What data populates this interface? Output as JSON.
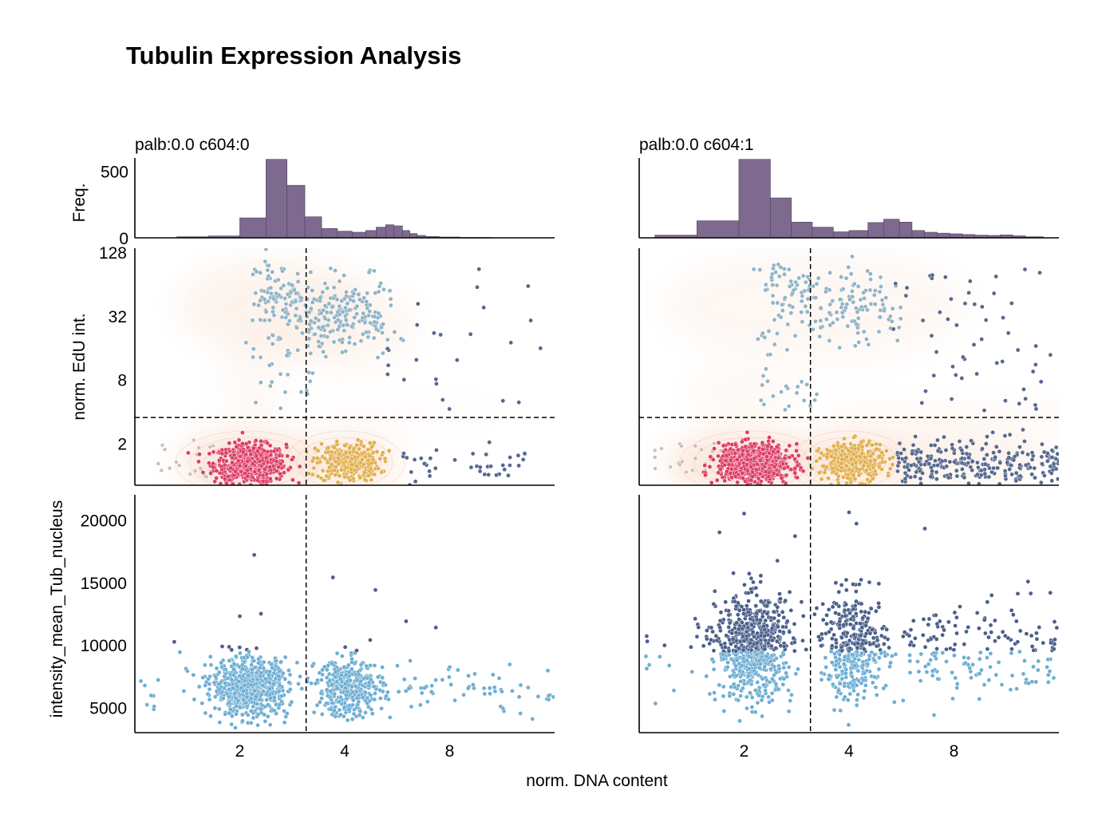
{
  "title": "Tubulin Expression Analysis",
  "shared_xlabel": "norm. DNA content",
  "colors": {
    "histogram": "#7e6a8f",
    "g1": "#dc3d66",
    "g2": "#e2ae4c",
    "s_phase": "#8fb4c8",
    "sub_g1": "#c8c0ba",
    "polyploid": "#56688f",
    "kde": "#f5c8a8",
    "tub_low": "#6eaed3",
    "tub_high": "#4a5f8a"
  },
  "chart_data": [
    {
      "panel": "left",
      "title": "palb:0.0 c604:0",
      "histogram": {
        "type": "bar",
        "ylabel": "Freq.",
        "yticks": [
          0,
          500
        ],
        "ylim": [
          0,
          600
        ],
        "x_log2_range": [
          0,
          4
        ],
        "bins": [
          {
            "x0": 0.4,
            "x1": 0.7,
            "count": 8
          },
          {
            "x0": 0.7,
            "x1": 1.0,
            "count": 14
          },
          {
            "x0": 1.0,
            "x1": 1.25,
            "count": 150
          },
          {
            "x0": 1.25,
            "x1": 1.45,
            "count": 590
          },
          {
            "x0": 1.45,
            "x1": 1.62,
            "count": 395
          },
          {
            "x0": 1.62,
            "x1": 1.78,
            "count": 158
          },
          {
            "x0": 1.78,
            "x1": 1.93,
            "count": 70
          },
          {
            "x0": 1.93,
            "x1": 2.07,
            "count": 50
          },
          {
            "x0": 2.07,
            "x1": 2.2,
            "count": 42
          },
          {
            "x0": 2.2,
            "x1": 2.3,
            "count": 55
          },
          {
            "x0": 2.3,
            "x1": 2.39,
            "count": 80
          },
          {
            "x0": 2.39,
            "x1": 2.47,
            "count": 98
          },
          {
            "x0": 2.47,
            "x1": 2.55,
            "count": 90
          },
          {
            "x0": 2.55,
            "x1": 2.62,
            "count": 55
          },
          {
            "x0": 2.62,
            "x1": 2.69,
            "count": 32
          },
          {
            "x0": 2.69,
            "x1": 2.77,
            "count": 18
          },
          {
            "x0": 2.77,
            "x1": 2.9,
            "count": 10
          },
          {
            "x0": 2.9,
            "x1": 3.1,
            "count": 6
          },
          {
            "x0": 3.1,
            "x1": 3.4,
            "count": 3
          }
        ]
      },
      "scatter_edu": {
        "type": "scatter",
        "ylabel": "norm. EdU int.",
        "yticks": [
          2,
          8,
          32,
          128
        ],
        "ylim": [
          0.8,
          140
        ],
        "y_scale": "log2",
        "x_scale": "log2",
        "xlim": [
          1,
          16
        ],
        "gates": {
          "dna": 3.1,
          "edu": 3.5
        }
      },
      "scatter_tub": {
        "type": "scatter",
        "ylabel": "intensity_mean_Tub_nucleus",
        "yticks": [
          5000,
          10000,
          15000,
          20000
        ],
        "ylim": [
          3000,
          22000
        ],
        "xticks": [
          2,
          4,
          8
        ],
        "x_scale": "log2",
        "xlim": [
          1,
          16
        ],
        "gate_dna": 3.1,
        "threshold": 9500,
        "high_points": [
          [
            2.2,
            17200
          ],
          [
            3.7,
            15400
          ],
          [
            4.9,
            14400
          ],
          [
            6.0,
            11900
          ],
          [
            7.3,
            11400
          ],
          [
            2.3,
            12500
          ],
          [
            2.0,
            12300
          ]
        ]
      }
    },
    {
      "panel": "right",
      "title": "palb:0.0 c604:1",
      "histogram": {
        "type": "bar",
        "ylabel": "",
        "yticks": [
          0,
          500
        ],
        "ylim": [
          0,
          600
        ],
        "x_log2_range": [
          0,
          4
        ],
        "bins": [
          {
            "x0": 0.15,
            "x1": 0.55,
            "count": 20
          },
          {
            "x0": 0.55,
            "x1": 0.95,
            "count": 128
          },
          {
            "x0": 0.95,
            "x1": 1.25,
            "count": 590
          },
          {
            "x0": 1.25,
            "x1": 1.45,
            "count": 300
          },
          {
            "x0": 1.45,
            "x1": 1.65,
            "count": 118
          },
          {
            "x0": 1.65,
            "x1": 1.85,
            "count": 80
          },
          {
            "x0": 1.85,
            "x1": 2.0,
            "count": 45
          },
          {
            "x0": 2.0,
            "x1": 2.18,
            "count": 55
          },
          {
            "x0": 2.18,
            "x1": 2.33,
            "count": 115
          },
          {
            "x0": 2.33,
            "x1": 2.48,
            "count": 140
          },
          {
            "x0": 2.48,
            "x1": 2.6,
            "count": 118
          },
          {
            "x0": 2.6,
            "x1": 2.72,
            "count": 55
          },
          {
            "x0": 2.72,
            "x1": 2.84,
            "count": 42
          },
          {
            "x0": 2.84,
            "x1": 2.96,
            "count": 35
          },
          {
            "x0": 2.96,
            "x1": 3.08,
            "count": 30
          },
          {
            "x0": 3.08,
            "x1": 3.2,
            "count": 25
          },
          {
            "x0": 3.2,
            "x1": 3.32,
            "count": 20
          },
          {
            "x0": 3.32,
            "x1": 3.44,
            "count": 18
          },
          {
            "x0": 3.44,
            "x1": 3.56,
            "count": 22
          },
          {
            "x0": 3.56,
            "x1": 3.68,
            "count": 15
          },
          {
            "x0": 3.68,
            "x1": 3.85,
            "count": 8
          }
        ]
      },
      "scatter_edu": {
        "type": "scatter",
        "ylabel": "",
        "yticks": [
          2,
          8,
          32,
          128
        ],
        "ylim": [
          0.8,
          140
        ],
        "y_scale": "log2",
        "x_scale": "log2",
        "xlim": [
          1,
          16
        ],
        "gates": {
          "dna": 3.1,
          "edu": 3.5
        }
      },
      "scatter_tub": {
        "type": "scatter",
        "ylabel": "",
        "yticks": [
          5000,
          10000,
          15000,
          20000
        ],
        "ylim": [
          3000,
          22000
        ],
        "xticks": [
          2,
          4,
          8
        ],
        "x_scale": "log2",
        "xlim": [
          1,
          16
        ],
        "gate_dna": 3.1,
        "threshold": 9500,
        "high_points": [
          [
            2.0,
            20500
          ],
          [
            4.0,
            20600
          ],
          [
            1.7,
            19000
          ],
          [
            2.8,
            18700
          ],
          [
            6.6,
            19300
          ],
          [
            4.2,
            19700
          ]
        ]
      }
    }
  ]
}
